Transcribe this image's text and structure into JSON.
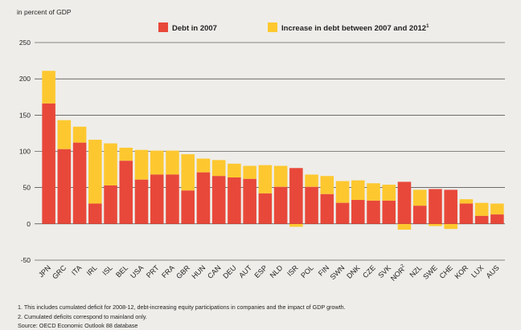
{
  "chart_data": {
    "type": "bar",
    "stacked": true,
    "ylabel": "in percent of GDP",
    "ylim": [
      -50,
      250
    ],
    "yticks": [
      -50,
      0,
      50,
      100,
      150,
      200,
      250
    ],
    "grid": true,
    "legend_position": "top",
    "categories": [
      "JPN",
      "GRC",
      "ITA",
      "IRL",
      "ISL",
      "BEL",
      "USA",
      "PRT",
      "FRA",
      "GBR",
      "HUN",
      "CAN",
      "DEU",
      "AUT",
      "ESP",
      "NLD",
      "ISR",
      "POL",
      "FIN",
      "SWN",
      "DNK",
      "CZE",
      "SVK",
      "NOR",
      "NZL",
      "SWE",
      "CHE",
      "KOR",
      "LUX",
      "AUS"
    ],
    "category_labels": [
      "JPN",
      "GRC",
      "ITA",
      "IRL",
      "ISL",
      "BEL",
      "USA",
      "PRT",
      "FRA",
      "GBR",
      "HUN",
      "CAN",
      "DEU",
      "AUT",
      "ESP",
      "NLD",
      "ISR",
      "POL",
      "FIN",
      "SWN",
      "DNK",
      "CZE",
      "SVK",
      "NOR",
      "NZL",
      "SWE",
      "CHE",
      "KOR",
      "LUX",
      "AUS"
    ],
    "category_superscripts": [
      "",
      "",
      "",
      "",
      "",
      "",
      "",
      "",
      "",
      "",
      "",
      "",
      "",
      "",
      "",
      "",
      "",
      "",
      "",
      "",
      "",
      "",
      "",
      "2",
      "",
      "",
      "",
      "",
      "",
      ""
    ],
    "series": [
      {
        "name": "Debt in 2007",
        "color": "#e8483a",
        "values": [
          166,
          103,
          112,
          28,
          53,
          87,
          61,
          68,
          68,
          46,
          71,
          66,
          64,
          62,
          42,
          51,
          77,
          51,
          41,
          29,
          33,
          32,
          32,
          58,
          25,
          48,
          47,
          28,
          11,
          13
        ]
      },
      {
        "name": "Increase in debt between 2007 and 2012",
        "name_superscript": "1",
        "color": "#fdc82f",
        "values": [
          45,
          40,
          22,
          88,
          58,
          18,
          41,
          33,
          33,
          50,
          19,
          22,
          19,
          18,
          39,
          29,
          -4,
          17,
          25,
          30,
          27,
          24,
          22,
          -8,
          22,
          -3,
          -7,
          6,
          18,
          15
        ]
      }
    ]
  },
  "footnotes": [
    "1. This includes cumulated deficit for 2008-12, debt-increasing equity participations in companies and the impact of GDP growth.",
    "2. Cumulated deficits correspond to mainland only."
  ],
  "source": "Source: OECD Economic Outlook 88 database"
}
